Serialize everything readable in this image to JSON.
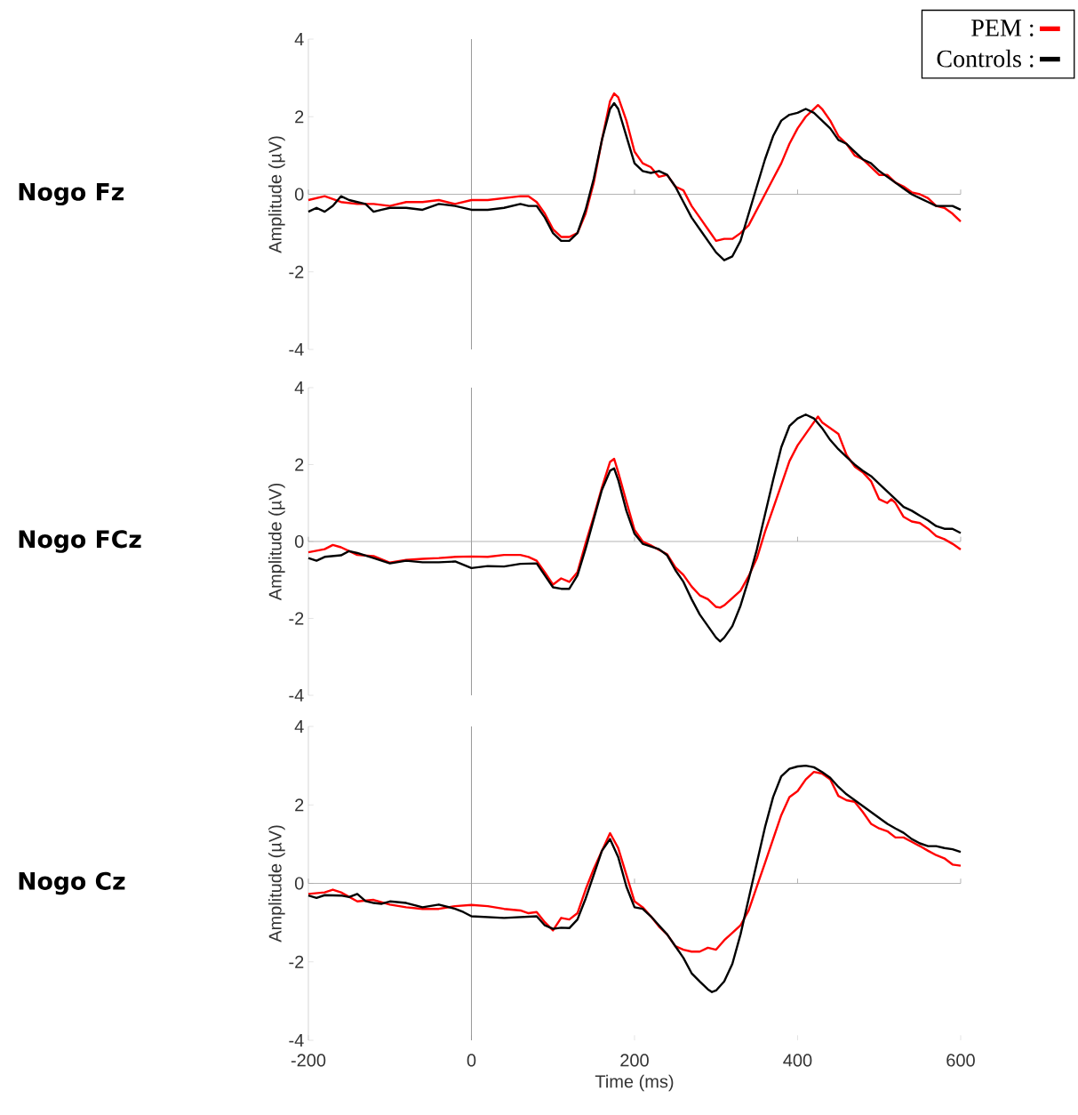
{
  "chart_data": [
    {
      "type": "line",
      "annotations": [
        "Nogo Fz"
      ],
      "ylabel": "Amplitude (µV)",
      "xlim": [
        -200,
        600
      ],
      "xticks": [
        -200,
        0,
        200,
        400,
        600
      ],
      "ylim": [
        -4,
        4
      ],
      "yticks": [
        -4,
        -2,
        0,
        2,
        4
      ],
      "tick_labels": "y",
      "legend": "top right",
      "ref_lines": [
        {
          "axis": "x",
          "value": 0,
          "color": "#808080"
        },
        {
          "axis": "y",
          "value": 0,
          "color": "#a0a0a0"
        }
      ],
      "series": [
        {
          "name": "PEM :",
          "color": "#ff0000",
          "x": [
            -200,
            -180,
            -160,
            -140,
            -120,
            -100,
            -80,
            -60,
            -40,
            -20,
            0,
            20,
            40,
            60,
            70,
            80,
            90,
            100,
            110,
            120,
            130,
            140,
            150,
            160,
            170,
            175,
            180,
            190,
            200,
            210,
            220,
            230,
            240,
            250,
            260,
            270,
            280,
            290,
            300,
            310,
            320,
            330,
            340,
            350,
            360,
            370,
            380,
            390,
            400,
            410,
            420,
            425,
            430,
            440,
            450,
            460,
            470,
            480,
            490,
            500,
            510,
            520,
            530,
            540,
            550,
            560,
            570,
            580,
            590,
            600
          ],
          "values": [
            -0.15,
            -0.05,
            -0.2,
            -0.25,
            -0.25,
            -0.3,
            -0.2,
            -0.2,
            -0.15,
            -0.25,
            -0.15,
            -0.15,
            -0.1,
            -0.05,
            -0.05,
            -0.2,
            -0.5,
            -0.9,
            -1.1,
            -1.1,
            -1.0,
            -0.5,
            0.3,
            1.4,
            2.4,
            2.6,
            2.5,
            1.9,
            1.1,
            0.8,
            0.7,
            0.45,
            0.5,
            0.2,
            0.1,
            -0.3,
            -0.6,
            -0.9,
            -1.2,
            -1.15,
            -1.15,
            -1.0,
            -0.8,
            -0.4,
            0.0,
            0.4,
            0.8,
            1.3,
            1.7,
            2.0,
            2.2,
            2.3,
            2.2,
            1.9,
            1.5,
            1.3,
            1.0,
            0.9,
            0.7,
            0.5,
            0.5,
            0.3,
            0.2,
            0.05,
            0.0,
            -0.1,
            -0.3,
            -0.35,
            -0.5,
            -0.7
          ]
        },
        {
          "name": "Controls :",
          "color": "#000000",
          "x": [
            -200,
            -190,
            -180,
            -170,
            -160,
            -150,
            -140,
            -130,
            -120,
            -110,
            -100,
            -80,
            -60,
            -40,
            -20,
            0,
            20,
            40,
            60,
            70,
            80,
            90,
            100,
            110,
            120,
            130,
            140,
            150,
            160,
            170,
            175,
            180,
            190,
            200,
            210,
            220,
            230,
            240,
            250,
            260,
            270,
            280,
            290,
            300,
            310,
            320,
            330,
            340,
            350,
            360,
            370,
            380,
            390,
            400,
            410,
            420,
            430,
            440,
            450,
            460,
            470,
            480,
            490,
            500,
            510,
            520,
            530,
            540,
            550,
            560,
            570,
            580,
            590,
            600
          ],
          "values": [
            -0.45,
            -0.35,
            -0.45,
            -0.3,
            -0.05,
            -0.15,
            -0.2,
            -0.25,
            -0.45,
            -0.4,
            -0.35,
            -0.35,
            -0.4,
            -0.25,
            -0.3,
            -0.4,
            -0.4,
            -0.35,
            -0.25,
            -0.3,
            -0.3,
            -0.6,
            -1.0,
            -1.2,
            -1.2,
            -1.0,
            -0.4,
            0.4,
            1.4,
            2.2,
            2.35,
            2.2,
            1.5,
            0.8,
            0.6,
            0.55,
            0.6,
            0.5,
            0.2,
            -0.2,
            -0.6,
            -0.9,
            -1.2,
            -1.5,
            -1.7,
            -1.6,
            -1.2,
            -0.5,
            0.2,
            0.9,
            1.5,
            1.9,
            2.05,
            2.1,
            2.2,
            2.1,
            1.9,
            1.7,
            1.4,
            1.3,
            1.1,
            0.9,
            0.8,
            0.6,
            0.45,
            0.3,
            0.15,
            0.0,
            -0.1,
            -0.2,
            -0.3,
            -0.3,
            -0.3,
            -0.4
          ]
        }
      ]
    },
    {
      "type": "line",
      "annotations": [
        "Nogo FCz"
      ],
      "ylabel": "Amplitude (µV)",
      "xlim": [
        -200,
        600
      ],
      "xticks": [
        -200,
        0,
        200,
        400,
        600
      ],
      "ylim": [
        -4,
        4
      ],
      "yticks": [
        -4,
        -2,
        0,
        2,
        4
      ],
      "tick_labels": "y",
      "ref_lines": [
        {
          "axis": "x",
          "value": 0,
          "color": "#808080"
        },
        {
          "axis": "y",
          "value": 0,
          "color": "#a0a0a0"
        }
      ],
      "series": [
        {
          "color": "#ff0000",
          "x": [
            -200,
            -180,
            -170,
            -160,
            -140,
            -120,
            -100,
            -80,
            -60,
            -40,
            -20,
            0,
            20,
            40,
            60,
            70,
            80,
            90,
            100,
            110,
            120,
            130,
            140,
            150,
            160,
            170,
            175,
            180,
            190,
            200,
            210,
            220,
            230,
            240,
            250,
            260,
            270,
            280,
            290,
            300,
            305,
            310,
            320,
            330,
            340,
            350,
            360,
            370,
            380,
            390,
            400,
            410,
            420,
            425,
            430,
            440,
            450,
            460,
            470,
            480,
            490,
            500,
            510,
            515,
            520,
            530,
            540,
            550,
            560,
            570,
            580,
            590,
            600
          ],
          "values": [
            -0.28,
            -0.2,
            -0.09,
            -0.15,
            -0.35,
            -0.38,
            -0.55,
            -0.48,
            -0.45,
            -0.43,
            -0.4,
            -0.39,
            -0.4,
            -0.35,
            -0.35,
            -0.4,
            -0.5,
            -0.8,
            -1.12,
            -0.96,
            -1.05,
            -0.8,
            -0.05,
            0.65,
            1.4,
            2.07,
            2.15,
            1.8,
            1.04,
            0.3,
            0.0,
            -0.1,
            -0.22,
            -0.33,
            -0.67,
            -0.87,
            -1.17,
            -1.4,
            -1.5,
            -1.7,
            -1.72,
            -1.66,
            -1.47,
            -1.28,
            -0.9,
            -0.44,
            0.25,
            0.86,
            1.47,
            2.09,
            2.5,
            2.8,
            3.1,
            3.25,
            3.1,
            2.95,
            2.8,
            2.25,
            1.95,
            1.8,
            1.57,
            1.1,
            1.0,
            1.1,
            1.0,
            0.64,
            0.52,
            0.48,
            0.33,
            0.14,
            0.06,
            -0.06,
            -0.21
          ]
        },
        {
          "color": "#000000",
          "x": [
            -200,
            -190,
            -180,
            -160,
            -150,
            -140,
            -120,
            -100,
            -80,
            -60,
            -40,
            -20,
            0,
            20,
            40,
            60,
            80,
            90,
            100,
            110,
            120,
            130,
            140,
            150,
            160,
            170,
            175,
            180,
            190,
            200,
            210,
            220,
            230,
            240,
            250,
            260,
            270,
            280,
            290,
            300,
            305,
            310,
            320,
            330,
            340,
            350,
            360,
            370,
            380,
            390,
            400,
            410,
            420,
            430,
            440,
            450,
            460,
            470,
            480,
            490,
            500,
            510,
            520,
            530,
            540,
            550,
            560,
            570,
            580,
            590,
            600
          ],
          "values": [
            -0.43,
            -0.5,
            -0.4,
            -0.36,
            -0.25,
            -0.3,
            -0.43,
            -0.57,
            -0.5,
            -0.54,
            -0.54,
            -0.52,
            -0.69,
            -0.64,
            -0.65,
            -0.58,
            -0.57,
            -0.88,
            -1.19,
            -1.23,
            -1.23,
            -0.88,
            -0.19,
            0.58,
            1.34,
            1.84,
            1.9,
            1.6,
            0.8,
            0.2,
            -0.06,
            -0.13,
            -0.2,
            -0.36,
            -0.74,
            -1.05,
            -1.5,
            -1.9,
            -2.2,
            -2.5,
            -2.6,
            -2.5,
            -2.2,
            -1.67,
            -0.98,
            -0.21,
            0.7,
            1.6,
            2.45,
            3.0,
            3.2,
            3.3,
            3.2,
            2.95,
            2.64,
            2.4,
            2.2,
            2.0,
            1.84,
            1.7,
            1.5,
            1.3,
            1.1,
            0.9,
            0.8,
            0.67,
            0.55,
            0.4,
            0.33,
            0.33,
            0.22
          ]
        }
      ]
    },
    {
      "type": "line",
      "annotations": [
        "Nogo Cz"
      ],
      "xlabel": "Time (ms)",
      "ylabel": "Amplitude (µV)",
      "xlim": [
        -200,
        600
      ],
      "xticks": [
        -200,
        0,
        200,
        400,
        600
      ],
      "ylim": [
        -4,
        4
      ],
      "yticks": [
        -4,
        -2,
        0,
        2,
        4
      ],
      "ref_lines": [
        {
          "axis": "x",
          "value": 0,
          "color": "#808080"
        },
        {
          "axis": "y",
          "value": 0,
          "color": "#a0a0a0"
        }
      ],
      "series": [
        {
          "color": "#ff0000",
          "x": [
            -200,
            -180,
            -170,
            -160,
            -140,
            -120,
            -100,
            -80,
            -60,
            -40,
            -20,
            0,
            20,
            40,
            60,
            70,
            80,
            90,
            100,
            110,
            120,
            130,
            140,
            150,
            160,
            170,
            180,
            190,
            200,
            210,
            220,
            230,
            240,
            250,
            260,
            270,
            280,
            290,
            300,
            310,
            320,
            330,
            340,
            350,
            360,
            370,
            380,
            390,
            400,
            410,
            420,
            430,
            440,
            450,
            460,
            470,
            480,
            490,
            500,
            510,
            520,
            530,
            540,
            550,
            560,
            570,
            580,
            590,
            600
          ],
          "values": [
            -0.27,
            -0.23,
            -0.16,
            -0.23,
            -0.46,
            -0.42,
            -0.54,
            -0.61,
            -0.65,
            -0.65,
            -0.58,
            -0.55,
            -0.58,
            -0.65,
            -0.69,
            -0.76,
            -0.73,
            -0.99,
            -1.2,
            -0.88,
            -0.92,
            -0.76,
            -0.16,
            0.37,
            0.83,
            1.28,
            0.9,
            0.22,
            -0.46,
            -0.61,
            -0.84,
            -1.1,
            -1.3,
            -1.6,
            -1.69,
            -1.74,
            -1.74,
            -1.64,
            -1.69,
            -1.45,
            -1.26,
            -1.07,
            -0.69,
            -0.08,
            0.52,
            1.13,
            1.74,
            2.2,
            2.35,
            2.65,
            2.84,
            2.8,
            2.65,
            2.23,
            2.12,
            2.08,
            1.82,
            1.52,
            1.4,
            1.33,
            1.17,
            1.17,
            1.06,
            0.95,
            0.83,
            0.72,
            0.64,
            0.48,
            0.45
          ]
        },
        {
          "color": "#000000",
          "x": [
            -200,
            -190,
            -180,
            -160,
            -150,
            -140,
            -130,
            -120,
            -110,
            -100,
            -80,
            -60,
            -40,
            -20,
            -10,
            0,
            20,
            40,
            60,
            80,
            90,
            100,
            110,
            120,
            130,
            140,
            150,
            160,
            170,
            180,
            190,
            200,
            210,
            220,
            230,
            240,
            250,
            260,
            270,
            280,
            290,
            295,
            300,
            310,
            320,
            330,
            340,
            350,
            360,
            370,
            380,
            390,
            400,
            410,
            420,
            430,
            440,
            450,
            460,
            470,
            480,
            490,
            500,
            510,
            520,
            530,
            540,
            550,
            560,
            570,
            580,
            590,
            600
          ],
          "values": [
            -0.31,
            -0.37,
            -0.3,
            -0.31,
            -0.35,
            -0.27,
            -0.45,
            -0.5,
            -0.52,
            -0.46,
            -0.5,
            -0.61,
            -0.54,
            -0.65,
            -0.73,
            -0.84,
            -0.86,
            -0.88,
            -0.86,
            -0.84,
            -1.07,
            -1.16,
            -1.13,
            -1.14,
            -0.92,
            -0.39,
            0.22,
            0.83,
            1.13,
            0.67,
            -0.08,
            -0.61,
            -0.65,
            -0.84,
            -1.07,
            -1.3,
            -1.6,
            -1.9,
            -2.29,
            -2.5,
            -2.7,
            -2.77,
            -2.73,
            -2.5,
            -2.05,
            -1.3,
            -0.39,
            0.52,
            1.43,
            2.2,
            2.73,
            2.92,
            2.98,
            3.0,
            2.96,
            2.84,
            2.69,
            2.46,
            2.27,
            2.12,
            1.97,
            1.82,
            1.67,
            1.52,
            1.4,
            1.29,
            1.13,
            1.02,
            0.95,
            0.95,
            0.9,
            0.87,
            0.8
          ]
        }
      ]
    }
  ]
}
